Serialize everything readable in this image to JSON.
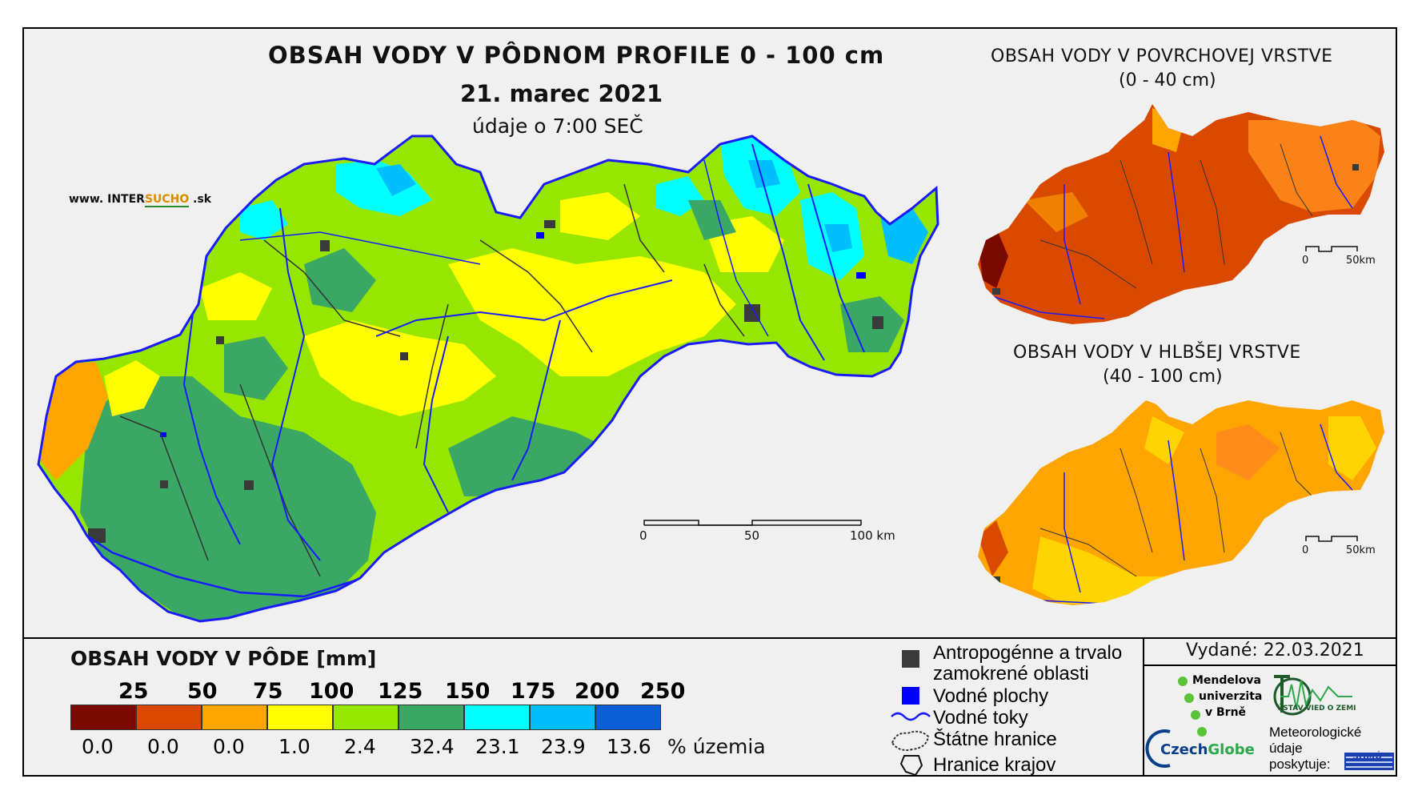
{
  "main_map": {
    "title": "OBSAH VODY V PÔDNOM PROFILE 0 - 100 cm",
    "date": "21. marec 2021",
    "time": "údaje o 7:00 SEČ",
    "website_prefix": "www.",
    "website_brand_a": "INTER",
    "website_brand_b": "SUCHO",
    "website_suffix": ".sk",
    "scale_labels": [
      "0",
      "50",
      "100 km"
    ]
  },
  "surface_map": {
    "title": "OBSAH VODY V POVRCHOVEJ VRSTVE",
    "range": "(0 - 40 cm)",
    "scale_labels": [
      "0",
      "50km"
    ]
  },
  "deep_map": {
    "title": "OBSAH VODY V HLBŠEJ VRSTVE",
    "range": "(40 - 100 cm)",
    "scale_labels": [
      "0",
      "50km"
    ]
  },
  "legend": {
    "title": "OBSAH VODY V PÔDE [mm]",
    "breaks": [
      "25",
      "50",
      "75",
      "100",
      "125",
      "150",
      "175",
      "200",
      "250"
    ],
    "classes": [
      {
        "color": "#7a0a00",
        "percent": "0.0"
      },
      {
        "color": "#d94a00",
        "percent": "0.0"
      },
      {
        "color": "#ffa500",
        "percent": "0.0"
      },
      {
        "color": "#ffff00",
        "percent": "1.0"
      },
      {
        "color": "#96e600",
        "percent": "2.4"
      },
      {
        "color": "#3aa864",
        "percent": "32.4"
      },
      {
        "color": "#00ffff",
        "percent": "23.1"
      },
      {
        "color": "#00bfff",
        "percent": "23.9"
      },
      {
        "color": "#0a5fd6",
        "percent": "13.6"
      }
    ],
    "percent_unit": "% územia"
  },
  "map_key": {
    "anthropogenic_1": "Antropogénne a trvalo",
    "anthropogenic_2": "zamokrené oblasti",
    "water_bodies": "Vodné plochy",
    "rivers": "Vodné toky",
    "state_border": "Štátne hranice",
    "region_border": "Hranice krajov"
  },
  "info": {
    "issued": "Vydané: 22.03.2021",
    "mendel_1": "Mendelova",
    "mendel_2": "univerzita",
    "mendel_3": "v Brně",
    "czechglobe_a": "Czech",
    "czechglobe_b": "Globe",
    "ustav": "ÚSTAV VIED O ZEMI",
    "meteo_1": "Meteorologické",
    "meteo_2": "údaje",
    "meteo_3": "poskytuje:",
    "shmu": "SHMÚ"
  },
  "colors": {
    "river": "#1a1aff",
    "border": "#333333",
    "anthropogenic": "#3a3a3a",
    "water_body": "#0000ff"
  }
}
